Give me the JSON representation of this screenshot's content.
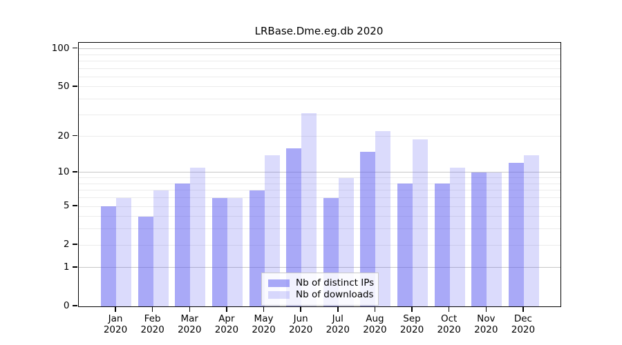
{
  "chart_title": "LRBase.Dme.eg.db 2020",
  "colors": {
    "ips_fill": "rgba(90,90,240,0.52)",
    "downloads_fill": "rgba(90,90,240,0.22)",
    "grid_major": "#c6c6c6",
    "grid_minor": "#ebebeb",
    "frame": "#000000",
    "legend_border": "#c9c9c9"
  },
  "y_axis": {
    "ticks": [
      {
        "value": 0,
        "label": "0"
      },
      {
        "value": 1,
        "label": "1"
      },
      {
        "value": 2,
        "label": "2"
      },
      {
        "value": 5,
        "label": "5"
      },
      {
        "value": 10,
        "label": "10"
      },
      {
        "value": 20,
        "label": "20"
      },
      {
        "value": 50,
        "label": "50"
      },
      {
        "value": 100,
        "label": "100"
      }
    ],
    "gridline_values": [
      1,
      2,
      3,
      4,
      5,
      6,
      7,
      8,
      9,
      10,
      20,
      30,
      40,
      50,
      60,
      70,
      80,
      90,
      100
    ],
    "emphasized_gridlines": [
      1,
      10,
      100
    ]
  },
  "legend": {
    "items": [
      {
        "label": "Nb of distinct IPs",
        "color_key": "ips_fill"
      },
      {
        "label": "Nb of downloads",
        "color_key": "downloads_fill"
      }
    ]
  },
  "chart_data": {
    "type": "bar",
    "title": "LRBase.Dme.eg.db 2020",
    "categories": [
      "Jan 2020",
      "Feb 2020",
      "Mar 2020",
      "Apr 2020",
      "May 2020",
      "Jun 2020",
      "Jul 2020",
      "Aug 2020",
      "Sep 2020",
      "Oct 2020",
      "Nov 2020",
      "Dec 2020"
    ],
    "series": [
      {
        "name": "Nb of distinct IPs",
        "values": [
          5,
          4,
          8,
          6,
          7,
          16,
          6,
          15,
          8,
          8,
          10,
          12
        ]
      },
      {
        "name": "Nb of downloads",
        "values": [
          6,
          7,
          11,
          6,
          14,
          31,
          9,
          22,
          19,
          11,
          10,
          14
        ]
      }
    ],
    "xlabel": "",
    "ylabel": "",
    "yscale": "log1p",
    "yticks": [
      0,
      1,
      2,
      5,
      10,
      20,
      50,
      100
    ],
    "ylim": [
      0,
      110
    ],
    "grid": "on",
    "legend_position": "bottom-center-inside"
  }
}
